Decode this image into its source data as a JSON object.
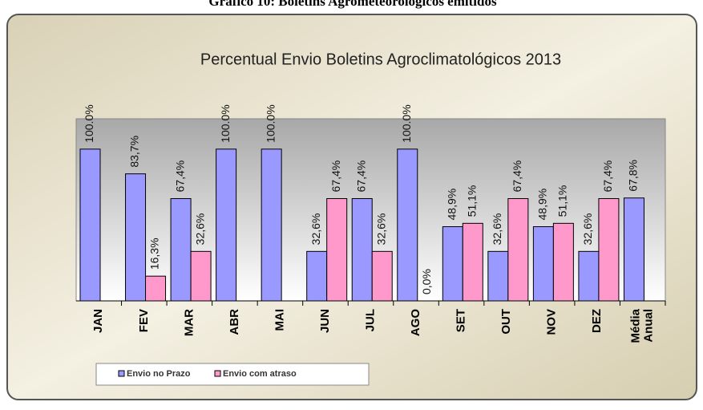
{
  "chart_data": {
    "type": "bar",
    "caption": "Gráfico 10: Boletins Agrometeorológicos emitidos",
    "title": "Percentual Envio Boletins Agroclimatológicos 2013",
    "categories": [
      "JAN",
      "FEV",
      "MAR",
      "ABR",
      "MAI",
      "JUN",
      "JUL",
      "AGO",
      "SET",
      "OUT",
      "NOV",
      "DEZ",
      "Média Anual"
    ],
    "series": [
      {
        "name": "Envio no Prazo",
        "color": "#9999ff",
        "values": [
          100,
          83.7,
          67.4,
          100,
          100,
          32.6,
          67.4,
          100,
          48.9,
          32.6,
          48.9,
          32.6,
          67.8
        ],
        "value_labels": [
          "100.0%",
          "83,7%",
          "67,4%",
          "100.0%",
          "100.0%",
          "32,6%",
          "67,4%",
          "100.0%",
          "48,9%",
          "32,6%",
          "48,9%",
          "32,6%",
          "67,8%"
        ]
      },
      {
        "name": "Envio com atraso",
        "color": "#ff99cc",
        "values": [
          null,
          16.3,
          32.6,
          null,
          null,
          67.4,
          32.6,
          0,
          51.1,
          67.4,
          51.1,
          67.4,
          null
        ],
        "value_labels": [
          null,
          "16,3%",
          "32,6%",
          null,
          null,
          "67,4%",
          "32,6%",
          "0,0%",
          "51,1%",
          "67,4%",
          "51,1%",
          "67,4%",
          null
        ]
      }
    ],
    "ylim": [
      0,
      120
    ]
  }
}
